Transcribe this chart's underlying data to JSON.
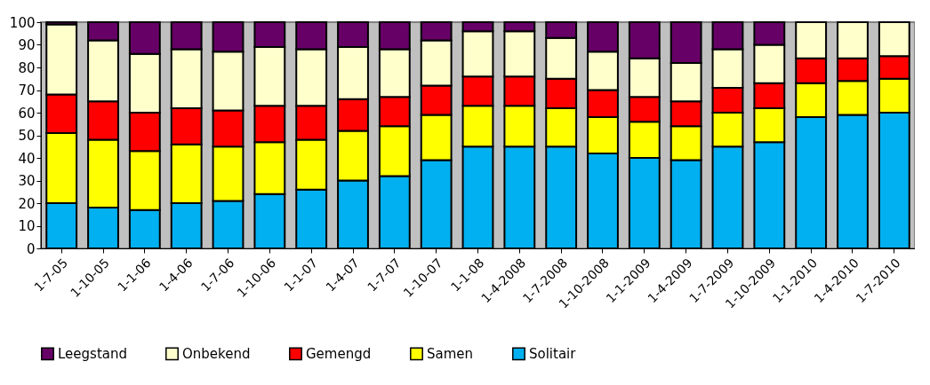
{
  "chart_data": {
    "type": "bar",
    "stacked": true,
    "categories": [
      "1-7-05",
      "1-10-05",
      "1-1-06",
      "1-4-06",
      "1-7-06",
      "1-10-06",
      "1-1-07",
      "1-4-07",
      "1-7-07",
      "1-10-07",
      "1-1-08",
      "1-4-2008",
      "1-7-2008",
      "1-10-2008",
      "1-1-2009",
      "1-4-2009",
      "1-7-2009",
      "1-10-2009",
      "1-1-2010",
      "1-4-2010",
      "1-7-2010"
    ],
    "series": [
      {
        "name": "Solitair",
        "color": "#00b0f0",
        "values": [
          20,
          18,
          17,
          20,
          21,
          24,
          26,
          30,
          32,
          39,
          45,
          45,
          45,
          42,
          40,
          39,
          45,
          47,
          58,
          59,
          60
        ]
      },
      {
        "name": "Samen",
        "color": "#ffff00",
        "values": [
          31,
          30,
          26,
          26,
          24,
          23,
          22,
          22,
          22,
          20,
          18,
          18,
          17,
          16,
          16,
          15,
          15,
          15,
          15,
          15,
          15
        ]
      },
      {
        "name": "Gemengd",
        "color": "#ff0000",
        "values": [
          17,
          17,
          17,
          16,
          16,
          16,
          15,
          14,
          13,
          13,
          13,
          13,
          13,
          12,
          11,
          11,
          11,
          11,
          11,
          10,
          10
        ]
      },
      {
        "name": "Onbekend",
        "color": "#ffffcc",
        "values": [
          31,
          27,
          26,
          26,
          26,
          26,
          25,
          23,
          21,
          20,
          20,
          20,
          18,
          17,
          17,
          17,
          17,
          17,
          16,
          16,
          15
        ]
      },
      {
        "name": "Leegstand",
        "color": "#660066",
        "values": [
          1,
          8,
          14,
          12,
          13,
          11,
          12,
          11,
          12,
          8,
          4,
          4,
          7,
          13,
          16,
          18,
          12,
          10,
          null,
          null,
          null
        ]
      }
    ],
    "ylim": [
      0,
      100
    ],
    "yticks": [
      0,
      10,
      20,
      30,
      40,
      50,
      60,
      70,
      80,
      90,
      100
    ],
    "grid": false,
    "legend": "bottom"
  }
}
